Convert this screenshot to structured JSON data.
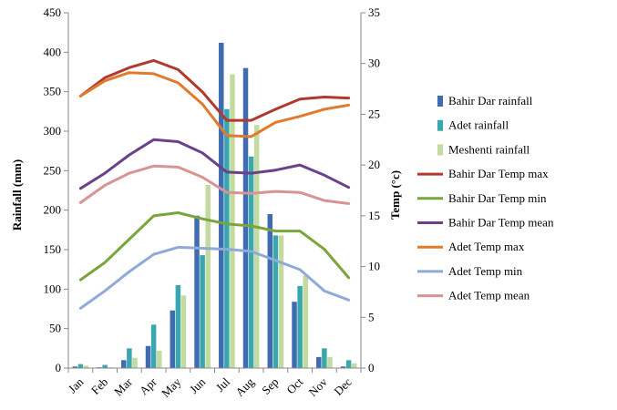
{
  "chart_data": {
    "type": "bar",
    "title": "",
    "xlabel": "",
    "ylabel": "Rainfall (mm)",
    "y2label": "Temp (°c)",
    "ylim": [
      0,
      450
    ],
    "y2lim": [
      0,
      35
    ],
    "yticks": [
      0,
      50,
      100,
      150,
      200,
      250,
      300,
      350,
      400,
      450
    ],
    "y2ticks": [
      0,
      5,
      10,
      15,
      20,
      25,
      30,
      35
    ],
    "grid": false,
    "legend": "right",
    "categories": [
      "Jan",
      "Feb",
      "Mar",
      "Apr",
      "May",
      "Jun",
      "Jul",
      "Aug",
      "Sep",
      "Oct",
      "Nov",
      "Dec"
    ],
    "bar_series": [
      {
        "name": "Bahir Dar rainfall",
        "color": "#3f6cb0",
        "values": [
          2,
          1,
          10,
          28,
          73,
          193,
          412,
          380,
          195,
          84,
          14,
          2
        ]
      },
      {
        "name": "Adet rainfall",
        "color": "#3aa6ad",
        "values": [
          5,
          4,
          25,
          55,
          105,
          143,
          328,
          268,
          168,
          104,
          25,
          10
        ]
      },
      {
        "name": "Meshenti rainfall",
        "color": "#c3dba0",
        "values": [
          3,
          1,
          13,
          22,
          92,
          232,
          372,
          308,
          168,
          117,
          14,
          6
        ]
      }
    ],
    "line_series": [
      {
        "name": "Bahir Dar Temp max",
        "color": "#b03a2e",
        "values": [
          26.8,
          28.6,
          29.6,
          30.3,
          29.4,
          27.2,
          24.4,
          24.4,
          25.5,
          26.5,
          26.7,
          26.6
        ]
      },
      {
        "name": "Bahir Dar Temp min",
        "color": "#7aa53a",
        "values": [
          8.7,
          10.4,
          12.7,
          15.0,
          15.3,
          14.7,
          14.2,
          14.0,
          13.5,
          13.5,
          11.7,
          8.9
        ]
      },
      {
        "name": "Bahir Dar Temp mean",
        "color": "#6a418a",
        "values": [
          17.7,
          19.2,
          21.0,
          22.5,
          22.3,
          21.2,
          19.3,
          19.2,
          19.5,
          20.0,
          19.0,
          17.8
        ]
      },
      {
        "name": "Adet Temp max",
        "color": "#e07b2e",
        "values": [
          26.8,
          28.3,
          29.1,
          29.0,
          28.1,
          26.0,
          22.9,
          22.8,
          24.2,
          24.8,
          25.5,
          25.9
        ]
      },
      {
        "name": "Adet Temp min",
        "color": "#8eaad9",
        "values": [
          5.9,
          7.6,
          9.5,
          11.2,
          11.9,
          11.8,
          11.7,
          11.5,
          10.6,
          9.7,
          7.6,
          6.7
        ]
      },
      {
        "name": "Adet Temp mean",
        "color": "#d99393",
        "values": [
          16.3,
          18.0,
          19.2,
          19.9,
          19.8,
          18.8,
          17.3,
          17.2,
          17.4,
          17.3,
          16.5,
          16.2
        ]
      }
    ]
  }
}
